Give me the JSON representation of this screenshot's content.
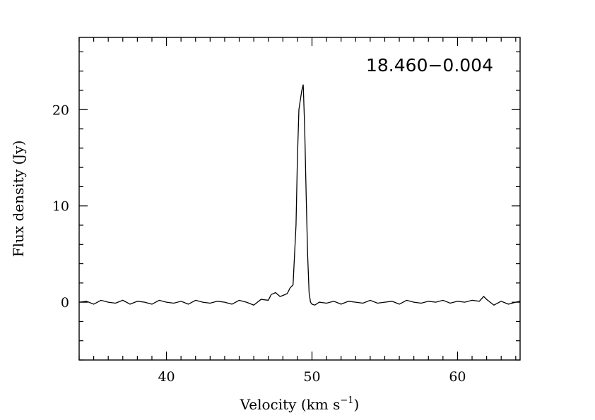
{
  "chart_data": {
    "type": "line",
    "title": "",
    "annotation": "18.460−0.004",
    "xlabel": "Velocity (km s",
    "xlabel_sup": "−1",
    "xlabel_end": ")",
    "ylabel": "Flux density (Jy)",
    "xlim": [
      34.0,
      64.3
    ],
    "ylim": [
      -6.0,
      27.5
    ],
    "x_ticks": [
      40,
      50,
      60
    ],
    "x_ticklabels": [
      "40",
      "50",
      "60"
    ],
    "y_ticks": [
      0,
      10,
      20
    ],
    "y_ticklabels": [
      "0",
      "10",
      "20"
    ],
    "x_minor_step": 1,
    "y_minor_step": 2,
    "grid": false,
    "series": [
      {
        "x": [
          34.0,
          34.5,
          35.0,
          35.5,
          36.0,
          36.5,
          37.0,
          37.5,
          38.0,
          38.5,
          39.0,
          39.5,
          40.0,
          40.5,
          41.0,
          41.5,
          42.0,
          42.5,
          43.0,
          43.5,
          44.0,
          44.5,
          45.0,
          45.5,
          46.0,
          46.5,
          47.0,
          47.2,
          47.5,
          47.8,
          48.0,
          48.3,
          48.5,
          48.7,
          48.9,
          49.0,
          49.1,
          49.2,
          49.3,
          49.4,
          49.5,
          49.6,
          49.7,
          49.8,
          49.9,
          50.0,
          50.2,
          50.5,
          51.0,
          51.5,
          52.0,
          52.5,
          53.0,
          53.5,
          54.0,
          54.5,
          55.0,
          55.5,
          56.0,
          56.5,
          57.0,
          57.5,
          58.0,
          58.5,
          59.0,
          59.5,
          60.0,
          60.5,
          61.0,
          61.5,
          61.8,
          62.0,
          62.5,
          63.0,
          63.5,
          64.0,
          64.3
        ],
        "y": [
          0.0,
          0.1,
          -0.2,
          0.2,
          0.0,
          -0.1,
          0.2,
          -0.2,
          0.1,
          0.0,
          -0.2,
          0.2,
          0.0,
          -0.1,
          0.1,
          -0.2,
          0.2,
          0.0,
          -0.1,
          0.1,
          0.0,
          -0.2,
          0.2,
          0.0,
          -0.3,
          0.3,
          0.2,
          0.8,
          1.0,
          0.6,
          0.7,
          0.9,
          1.5,
          1.8,
          8.0,
          15.0,
          20.0,
          21.0,
          22.0,
          22.6,
          18.0,
          11.0,
          5.0,
          1.0,
          0.0,
          -0.2,
          -0.3,
          0.0,
          -0.1,
          0.1,
          -0.2,
          0.1,
          0.0,
          -0.1,
          0.2,
          -0.1,
          0.0,
          0.1,
          -0.2,
          0.2,
          0.0,
          -0.1,
          0.1,
          0.0,
          0.2,
          -0.1,
          0.1,
          0.0,
          0.2,
          0.1,
          0.6,
          0.3,
          -0.3,
          0.1,
          -0.2,
          0.0,
          0.1
        ]
      }
    ]
  }
}
